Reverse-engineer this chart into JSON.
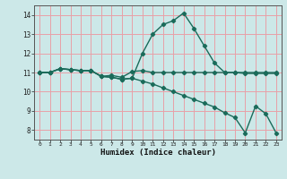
{
  "title": "",
  "xlabel": "Humidex (Indice chaleur)",
  "bg_color": "#cce8e8",
  "line_color": "#1a6b5a",
  "grid_color": "#e8a0a8",
  "xlim": [
    -0.5,
    23.5
  ],
  "ylim": [
    7.5,
    14.5
  ],
  "xticks": [
    0,
    1,
    2,
    3,
    4,
    5,
    6,
    7,
    8,
    9,
    10,
    11,
    12,
    13,
    14,
    15,
    16,
    17,
    18,
    19,
    20,
    21,
    22,
    23
  ],
  "yticks": [
    8,
    9,
    10,
    11,
    12,
    13,
    14
  ],
  "line1_x": [
    0,
    1,
    2,
    3,
    4,
    5,
    6,
    7,
    8,
    9,
    10,
    11,
    12,
    13,
    14,
    15,
    16,
    17,
    18,
    19,
    20,
    21,
    22,
    23
  ],
  "line1_y": [
    11.0,
    11.0,
    11.2,
    11.15,
    11.1,
    11.1,
    10.8,
    10.85,
    10.75,
    11.05,
    11.1,
    11.0,
    11.0,
    11.0,
    11.0,
    11.0,
    11.0,
    11.0,
    11.0,
    11.0,
    11.0,
    11.0,
    11.0,
    11.0
  ],
  "line2_x": [
    0,
    1,
    2,
    3,
    4,
    5,
    6,
    7,
    8,
    9,
    10,
    11,
    12,
    13,
    14,
    15,
    16,
    17,
    18,
    19,
    20,
    21,
    22,
    23
  ],
  "line2_y": [
    11.0,
    11.0,
    11.2,
    11.15,
    11.1,
    11.1,
    10.8,
    10.75,
    10.65,
    10.7,
    12.0,
    13.0,
    13.5,
    13.7,
    14.1,
    13.3,
    12.4,
    11.5,
    11.0,
    11.0,
    10.95,
    10.95,
    10.95,
    10.95
  ],
  "line3_x": [
    0,
    1,
    2,
    3,
    4,
    5,
    6,
    7,
    8,
    9,
    10,
    11,
    12,
    13,
    14,
    15,
    16,
    17,
    18,
    19,
    20,
    21,
    22,
    23
  ],
  "line3_y": [
    11.0,
    11.0,
    11.2,
    11.15,
    11.1,
    11.1,
    10.8,
    10.75,
    10.65,
    10.7,
    10.55,
    10.4,
    10.2,
    10.0,
    9.8,
    9.6,
    9.4,
    9.2,
    8.9,
    8.65,
    7.85,
    9.25,
    8.85,
    7.85
  ]
}
